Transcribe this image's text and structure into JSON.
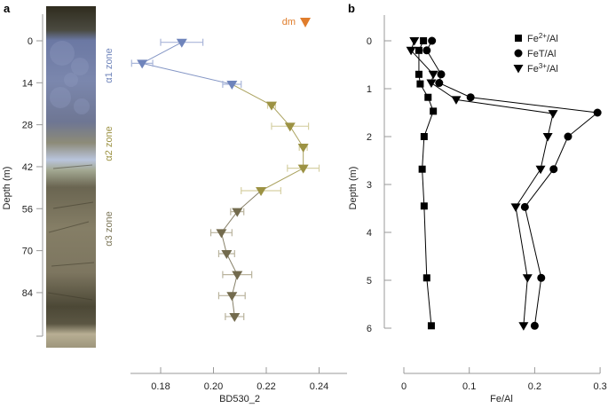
{
  "chart_data": [
    {
      "panel": "a",
      "type": "scatter",
      "title": "",
      "xlabel": "BD530_2",
      "ylabel": "Depth (m)",
      "xlim": [
        0.17,
        0.25
      ],
      "ylim": [
        95,
        -8
      ],
      "x_ticks": [
        "0.18",
        "0.20",
        "0.22",
        "0.24"
      ],
      "x_tick_values": [
        0.18,
        0.2,
        0.22,
        0.24
      ],
      "y_ticks": [
        "0",
        "14",
        "28",
        "42",
        "56",
        "70",
        "84"
      ],
      "y_tick_values": [
        0,
        14,
        28,
        42,
        56,
        70,
        84
      ],
      "zones": [
        {
          "name": "α1 zone",
          "color": "#6f84bb",
          "depth_center": 14
        },
        {
          "name": "α2 zone",
          "color": "#9c9243",
          "depth_center": 36
        },
        {
          "name": "α3 zone",
          "color": "#7c7658",
          "depth_center": 64
        }
      ],
      "legend": {
        "label": "dm",
        "color": "#e07d2c",
        "position": "top-right"
      },
      "series": [
        {
          "name": "α1",
          "color": "#6f84bb",
          "errcolor": "#a9b6d9",
          "points": [
            {
              "x": 0.188,
              "y": 0.5,
              "err": 0.008
            },
            {
              "x": 0.173,
              "y": 7.5,
              "err": 0.004
            },
            {
              "x": 0.207,
              "y": 14.5,
              "err": 0.0035
            }
          ]
        },
        {
          "name": "α2",
          "color": "#9c9243",
          "errcolor": "#d6d0a4",
          "points": [
            {
              "x": 0.222,
              "y": 21.5,
              "err": 0.0015
            },
            {
              "x": 0.229,
              "y": 28.5,
              "err": 0.007
            },
            {
              "x": 0.234,
              "y": 35.5,
              "err": 0.0015
            },
            {
              "x": 0.234,
              "y": 42.5,
              "err": 0.006
            },
            {
              "x": 0.218,
              "y": 50,
              "err": 0.0075
            }
          ]
        },
        {
          "name": "α3",
          "color": "#736b4e",
          "errcolor": "#b9b39d",
          "points": [
            {
              "x": 0.209,
              "y": 57,
              "err": 0.0025
            },
            {
              "x": 0.203,
              "y": 64,
              "err": 0.004
            },
            {
              "x": 0.205,
              "y": 71,
              "err": 0.003
            },
            {
              "x": 0.209,
              "y": 78,
              "err": 0.0055
            },
            {
              "x": 0.207,
              "y": 85,
              "err": 0.005
            },
            {
              "x": 0.208,
              "y": 92,
              "err": 0.0035
            }
          ]
        }
      ]
    },
    {
      "panel": "b",
      "type": "line",
      "title": "",
      "xlabel": "Fe/Al",
      "ylabel": "Depth (m)",
      "xlim": [
        -0.03,
        0.3
      ],
      "ylim": [
        6.3,
        -0.55
      ],
      "x_ticks": [
        "0",
        "0.1",
        "0.2",
        "0.3"
      ],
      "x_tick_values": [
        0,
        0.1,
        0.2,
        0.3
      ],
      "y_ticks": [
        "0",
        "1",
        "2",
        "3",
        "4",
        "5",
        "6"
      ],
      "y_tick_values": [
        0,
        1,
        2,
        3,
        4,
        5,
        6
      ],
      "legend_position": "top-right",
      "series": [
        {
          "name": "Fe2+/Al",
          "label_base": "Fe",
          "label_sup": "2+",
          "label_tail": "/Al",
          "marker": "square",
          "x": [
            0.03,
            0.023,
            0.023,
            0.025,
            0.037,
            0.045,
            0.031,
            0.028,
            0.031,
            0.035,
            0.042
          ],
          "y": [
            0.0,
            0.2,
            0.7,
            0.9,
            1.18,
            1.47,
            2.0,
            2.68,
            3.45,
            4.95,
            5.95
          ]
        },
        {
          "name": "FeT/Al",
          "label_base": "FeT/Al",
          "label_sup": "",
          "label_tail": "",
          "marker": "circle",
          "x": [
            0.043,
            0.035,
            0.057,
            0.054,
            0.102,
            0.296,
            0.251,
            0.229,
            0.185,
            0.21,
            0.2
          ],
          "y": [
            0.0,
            0.2,
            0.7,
            0.88,
            1.18,
            1.5,
            2.0,
            2.68,
            3.47,
            4.95,
            5.95
          ]
        },
        {
          "name": "Fe3+/Al",
          "label_base": "Fe",
          "label_sup": "3+",
          "label_tail": "/Al",
          "marker": "triangle-down",
          "x": [
            0.016,
            0.011,
            0.045,
            0.042,
            0.08,
            0.228,
            0.22,
            0.209,
            0.171,
            0.189,
            0.183
          ],
          "y": [
            0.0,
            0.2,
            0.7,
            0.88,
            1.23,
            1.52,
            2.0,
            2.68,
            3.47,
            4.95,
            5.95
          ]
        }
      ]
    }
  ],
  "labels": {
    "panel_a": "a",
    "panel_b": "b",
    "a_ylabel": "Depth (m)",
    "a_xlabel": "BD530_2",
    "b_ylabel": "Depth (m)",
    "b_xlabel": "Fe/Al",
    "dm_label": "dm",
    "zone1": "α1 zone",
    "zone2": "α2 zone",
    "zone3": "α3 zone"
  },
  "photo": {
    "description": "core photograph",
    "colors": {
      "top": "#3a3524",
      "blue": "#7583ad",
      "light": "#c9d2e4",
      "mid": "#8a8266",
      "dark": "#4f4a38",
      "bottom": "#b3ab90"
    }
  }
}
